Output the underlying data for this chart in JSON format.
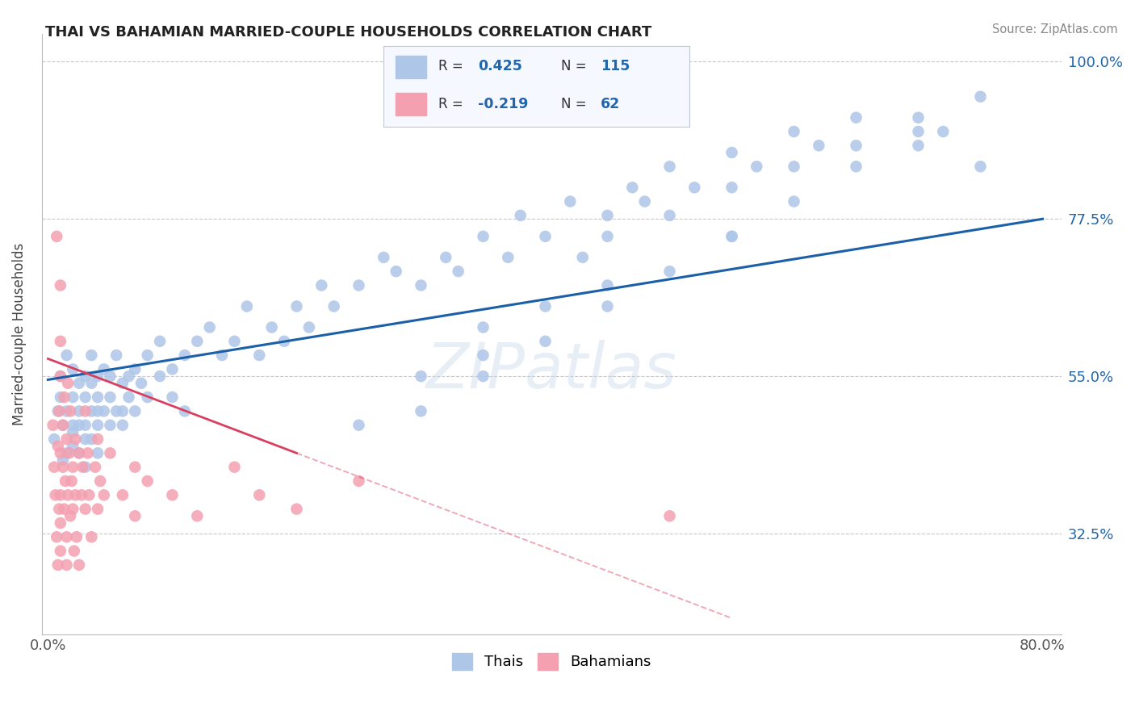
{
  "title": "THAI VS BAHAMIAN MARRIED-COUPLE HOUSEHOLDS CORRELATION CHART",
  "source_text": "Source: ZipAtlas.com",
  "ylabel": "Married-couple Households",
  "xlabel_thais": "Thais",
  "xlabel_bahamians": "Bahamians",
  "xlim": [
    -0.005,
    0.815
  ],
  "ylim": [
    0.18,
    1.04
  ],
  "xticks": [
    0.0,
    0.8
  ],
  "xticklabels": [
    "0.0%",
    "80.0%"
  ],
  "yticks_right": [
    0.325,
    0.55,
    0.775,
    1.0
  ],
  "ytick_right_labels": [
    "32.5%",
    "55.0%",
    "77.5%",
    "100.0%"
  ],
  "grid_color": "#c8c8c8",
  "background_color": "#ffffff",
  "thai_color": "#aec6e8",
  "thai_line_color": "#1a5fa8",
  "bahamian_color": "#f4a0b0",
  "bahamian_line_color": "#d94060",
  "watermark": "ZIPatlas",
  "thai_line_x0": 0.0,
  "thai_line_y0": 0.545,
  "thai_line_x1": 0.8,
  "thai_line_y1": 0.775,
  "bah_line_x0": 0.0,
  "bah_line_y0": 0.575,
  "bah_line_x1": 0.2,
  "bah_line_y1": 0.44,
  "bah_line_dash_x1": 0.55,
  "thai_scatter_x": [
    0.005,
    0.008,
    0.01,
    0.012,
    0.015,
    0.01,
    0.012,
    0.015,
    0.015,
    0.02,
    0.02,
    0.02,
    0.02,
    0.02,
    0.025,
    0.025,
    0.025,
    0.025,
    0.03,
    0.03,
    0.03,
    0.03,
    0.03,
    0.035,
    0.035,
    0.035,
    0.035,
    0.04,
    0.04,
    0.04,
    0.04,
    0.04,
    0.045,
    0.045,
    0.05,
    0.05,
    0.05,
    0.055,
    0.055,
    0.06,
    0.06,
    0.06,
    0.065,
    0.065,
    0.07,
    0.07,
    0.075,
    0.08,
    0.08,
    0.09,
    0.09,
    0.1,
    0.1,
    0.11,
    0.11,
    0.12,
    0.13,
    0.14,
    0.15,
    0.16,
    0.17,
    0.18,
    0.19,
    0.2,
    0.21,
    0.22,
    0.23,
    0.25,
    0.27,
    0.28,
    0.3,
    0.32,
    0.33,
    0.35,
    0.37,
    0.38,
    0.4,
    0.42,
    0.43,
    0.45,
    0.47,
    0.48,
    0.5,
    0.52,
    0.55,
    0.57,
    0.6,
    0.62,
    0.65,
    0.3,
    0.35,
    0.4,
    0.45,
    0.5,
    0.55,
    0.6,
    0.65,
    0.7,
    0.72,
    0.75,
    0.3,
    0.35,
    0.45,
    0.55,
    0.65,
    0.7,
    0.75,
    0.4,
    0.5,
    0.6,
    0.7,
    0.25,
    0.35,
    0.45,
    0.55
  ],
  "thai_scatter_y": [
    0.46,
    0.5,
    0.52,
    0.48,
    0.44,
    0.55,
    0.43,
    0.5,
    0.58,
    0.47,
    0.52,
    0.45,
    0.48,
    0.56,
    0.44,
    0.5,
    0.54,
    0.48,
    0.46,
    0.52,
    0.55,
    0.48,
    0.42,
    0.5,
    0.54,
    0.46,
    0.58,
    0.5,
    0.55,
    0.48,
    0.52,
    0.44,
    0.56,
    0.5,
    0.52,
    0.48,
    0.55,
    0.5,
    0.58,
    0.54,
    0.5,
    0.48,
    0.55,
    0.52,
    0.56,
    0.5,
    0.54,
    0.52,
    0.58,
    0.55,
    0.6,
    0.56,
    0.52,
    0.58,
    0.5,
    0.6,
    0.62,
    0.58,
    0.6,
    0.65,
    0.58,
    0.62,
    0.6,
    0.65,
    0.62,
    0.68,
    0.65,
    0.68,
    0.72,
    0.7,
    0.68,
    0.72,
    0.7,
    0.75,
    0.72,
    0.78,
    0.75,
    0.8,
    0.72,
    0.78,
    0.82,
    0.8,
    0.85,
    0.82,
    0.87,
    0.85,
    0.9,
    0.88,
    0.92,
    0.5,
    0.58,
    0.6,
    0.65,
    0.7,
    0.75,
    0.8,
    0.85,
    0.88,
    0.9,
    0.95,
    0.55,
    0.62,
    0.75,
    0.82,
    0.88,
    0.9,
    0.85,
    0.65,
    0.78,
    0.85,
    0.92,
    0.48,
    0.55,
    0.68,
    0.75
  ],
  "bahamian_scatter_x": [
    0.004,
    0.005,
    0.006,
    0.007,
    0.007,
    0.008,
    0.008,
    0.009,
    0.009,
    0.01,
    0.01,
    0.01,
    0.01,
    0.01,
    0.01,
    0.01,
    0.012,
    0.012,
    0.013,
    0.013,
    0.014,
    0.015,
    0.015,
    0.015,
    0.016,
    0.016,
    0.017,
    0.018,
    0.018,
    0.019,
    0.02,
    0.02,
    0.021,
    0.022,
    0.022,
    0.023,
    0.025,
    0.025,
    0.027,
    0.028,
    0.03,
    0.03,
    0.032,
    0.033,
    0.035,
    0.038,
    0.04,
    0.04,
    0.042,
    0.045,
    0.05,
    0.06,
    0.07,
    0.07,
    0.08,
    0.1,
    0.12,
    0.15,
    0.17,
    0.2,
    0.25,
    0.5
  ],
  "bahamian_scatter_y": [
    0.48,
    0.42,
    0.38,
    0.75,
    0.32,
    0.45,
    0.28,
    0.36,
    0.5,
    0.44,
    0.38,
    0.34,
    0.3,
    0.55,
    0.6,
    0.68,
    0.42,
    0.48,
    0.36,
    0.52,
    0.4,
    0.32,
    0.46,
    0.28,
    0.38,
    0.54,
    0.44,
    0.35,
    0.5,
    0.4,
    0.36,
    0.42,
    0.3,
    0.46,
    0.38,
    0.32,
    0.44,
    0.28,
    0.38,
    0.42,
    0.5,
    0.36,
    0.44,
    0.38,
    0.32,
    0.42,
    0.36,
    0.46,
    0.4,
    0.38,
    0.44,
    0.38,
    0.42,
    0.35,
    0.4,
    0.38,
    0.35,
    0.42,
    0.38,
    0.36,
    0.4,
    0.35
  ]
}
